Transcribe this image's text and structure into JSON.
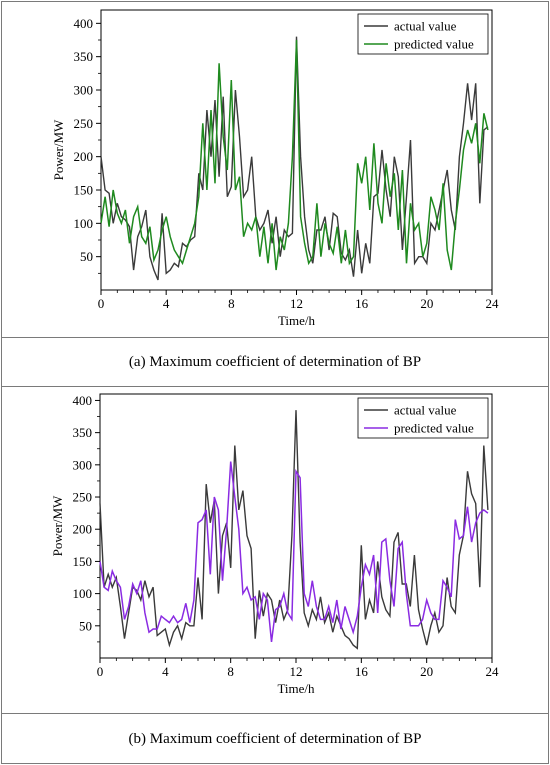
{
  "captions": [
    "(a)  Maximum coefficient of determination of BP",
    "(b)  Maximum coefficient of determination of BP"
  ],
  "chart_data": [
    {
      "type": "line",
      "xlabel": "Time/h",
      "ylabel": "Power/MW",
      "xlim": [
        0,
        24
      ],
      "ylim": [
        0,
        420
      ],
      "xticks": [
        0,
        4,
        8,
        12,
        16,
        20,
        24
      ],
      "yticks": [
        50,
        100,
        150,
        200,
        250,
        300,
        350,
        400
      ],
      "grid": false,
      "legend": "top-right",
      "series": [
        {
          "name": "actual value",
          "color": "#3a3a3a",
          "x": [
            0,
            0.25,
            0.5,
            0.75,
            1,
            1.25,
            1.5,
            1.75,
            2,
            2.25,
            2.5,
            2.75,
            3,
            3.25,
            3.5,
            3.75,
            4,
            4.25,
            4.5,
            4.75,
            5,
            5.25,
            5.5,
            5.75,
            6,
            6.25,
            6.5,
            6.75,
            7,
            7.25,
            7.5,
            7.75,
            8,
            8.25,
            8.5,
            8.75,
            9,
            9.25,
            9.5,
            9.75,
            10,
            10.25,
            10.5,
            10.75,
            11,
            11.25,
            11.5,
            11.75,
            12,
            12.25,
            12.5,
            12.75,
            13,
            13.25,
            13.5,
            13.75,
            14,
            14.25,
            14.5,
            14.75,
            15,
            15.25,
            15.5,
            15.75,
            16,
            16.25,
            16.5,
            16.75,
            17,
            17.25,
            17.5,
            17.75,
            18,
            18.25,
            18.5,
            18.75,
            19,
            19.25,
            19.5,
            19.75,
            20,
            20.25,
            20.5,
            20.75,
            21,
            21.25,
            21.5,
            21.75,
            22,
            22.25,
            22.5,
            22.75,
            23,
            23.25,
            23.5,
            23.75
          ],
          "y": [
            200,
            150,
            145,
            100,
            130,
            110,
            105,
            95,
            30,
            80,
            95,
            120,
            50,
            30,
            15,
            115,
            25,
            30,
            40,
            35,
            70,
            65,
            75,
            80,
            175,
            150,
            270,
            200,
            285,
            170,
            290,
            140,
            155,
            300,
            230,
            140,
            150,
            200,
            110,
            90,
            100,
            120,
            70,
            110,
            50,
            90,
            80,
            85,
            380,
            200,
            110,
            60,
            40,
            90,
            90,
            110,
            60,
            115,
            110,
            55,
            45,
            60,
            20,
            90,
            25,
            70,
            40,
            140,
            145,
            210,
            150,
            110,
            200,
            170,
            60,
            140,
            225,
            40,
            50,
            50,
            40,
            100,
            90,
            120,
            150,
            180,
            120,
            90,
            200,
            250,
            310,
            255,
            310,
            130,
            240,
            245
          ],
          "y_values_offset": 0
        },
        {
          "name": "predicted value",
          "color": "#1f8a1f",
          "x": [
            0,
            0.25,
            0.5,
            0.75,
            1,
            1.25,
            1.5,
            1.75,
            2,
            2.25,
            2.5,
            2.75,
            3,
            3.25,
            3.5,
            3.75,
            4,
            4.25,
            4.5,
            4.75,
            5,
            5.25,
            5.5,
            5.75,
            6,
            6.25,
            6.5,
            6.75,
            7,
            7.25,
            7.5,
            7.75,
            8,
            8.25,
            8.5,
            8.75,
            9,
            9.25,
            9.5,
            9.75,
            10,
            10.25,
            10.5,
            10.75,
            11,
            11.25,
            11.5,
            11.75,
            12,
            12.25,
            12.5,
            12.75,
            13,
            13.25,
            13.5,
            13.75,
            14,
            14.25,
            14.5,
            14.75,
            15,
            15.25,
            15.5,
            15.75,
            16,
            16.25,
            16.5,
            16.75,
            17,
            17.25,
            17.5,
            17.75,
            18,
            18.25,
            18.5,
            18.75,
            19,
            19.25,
            19.5,
            19.75,
            20,
            20.25,
            20.5,
            20.75,
            21,
            21.25,
            21.5,
            21.75,
            22,
            22.25,
            22.5,
            22.75,
            23,
            23.25,
            23.5,
            23.75
          ],
          "y": [
            100,
            140,
            95,
            150,
            115,
            100,
            120,
            70,
            110,
            125,
            80,
            70,
            95,
            45,
            60,
            90,
            110,
            80,
            60,
            50,
            40,
            60,
            80,
            100,
            140,
            250,
            150,
            270,
            160,
            340,
            230,
            180,
            315,
            150,
            170,
            80,
            100,
            90,
            110,
            50,
            95,
            40,
            100,
            30,
            80,
            60,
            100,
            200,
            375,
            110,
            70,
            40,
            50,
            130,
            50,
            100,
            70,
            55,
            95,
            40,
            90,
            40,
            50,
            190,
            160,
            200,
            120,
            220,
            130,
            100,
            190,
            140,
            175,
            90,
            180,
            40,
            130,
            90,
            100,
            50,
            70,
            140,
            120,
            90,
            160,
            60,
            30,
            100,
            150,
            210,
            240,
            220,
            250,
            190,
            265,
            240
          ]
        }
      ]
    },
    {
      "type": "line",
      "xlabel": "Time/h",
      "ylabel": "Power/MW",
      "xlim": [
        0,
        24
      ],
      "ylim": [
        0,
        410
      ],
      "xticks": [
        0,
        4,
        8,
        12,
        16,
        20,
        24
      ],
      "yticks": [
        50,
        100,
        150,
        200,
        250,
        300,
        350,
        400
      ],
      "grid": false,
      "legend": "top-right",
      "series": [
        {
          "name": "actual value",
          "color": "#3a3a3a",
          "x": [
            0,
            0.25,
            0.5,
            0.75,
            1,
            1.25,
            1.5,
            1.75,
            2,
            2.25,
            2.5,
            2.75,
            3,
            3.25,
            3.5,
            3.75,
            4,
            4.25,
            4.5,
            4.75,
            5,
            5.25,
            5.5,
            5.75,
            6,
            6.25,
            6.5,
            6.75,
            7,
            7.25,
            7.5,
            7.75,
            8,
            8.25,
            8.5,
            8.75,
            9,
            9.25,
            9.5,
            9.75,
            10,
            10.25,
            10.5,
            10.75,
            11,
            11.25,
            11.5,
            11.75,
            12,
            12.25,
            12.5,
            12.75,
            13,
            13.25,
            13.5,
            13.75,
            14,
            14.25,
            14.5,
            14.75,
            15,
            15.25,
            15.5,
            15.75,
            16,
            16.25,
            16.5,
            16.75,
            17,
            17.25,
            17.5,
            17.75,
            18,
            18.25,
            18.5,
            18.75,
            19,
            19.25,
            19.5,
            19.75,
            20,
            20.25,
            20.5,
            20.75,
            21,
            21.25,
            21.5,
            21.75,
            22,
            22.25,
            22.5,
            22.75,
            23,
            23.25,
            23.5,
            23.75
          ],
          "y": [
            240,
            110,
            130,
            110,
            125,
            80,
            30,
            70,
            110,
            105,
            90,
            120,
            95,
            110,
            35,
            40,
            45,
            20,
            40,
            50,
            30,
            55,
            50,
            50,
            125,
            60,
            270,
            210,
            245,
            100,
            190,
            210,
            140,
            330,
            230,
            260,
            190,
            170,
            30,
            105,
            65,
            100,
            90,
            55,
            90,
            60,
            75,
            190,
            385,
            180,
            70,
            50,
            75,
            60,
            95,
            55,
            70,
            40,
            65,
            50,
            35,
            30,
            20,
            15,
            175,
            60,
            90,
            70,
            150,
            95,
            75,
            65,
            180,
            195,
            115,
            115,
            80,
            160,
            75,
            45,
            20,
            50,
            70,
            40,
            50,
            125,
            80,
            70,
            160,
            190,
            290,
            255,
            240,
            110,
            330,
            230
          ]
        },
        {
          "name": "predicted value",
          "color": "#8a2be2",
          "x": [
            0,
            0.25,
            0.5,
            0.75,
            1,
            1.25,
            1.5,
            1.75,
            2,
            2.25,
            2.5,
            2.75,
            3,
            3.25,
            3.5,
            3.75,
            4,
            4.25,
            4.5,
            4.75,
            5,
            5.25,
            5.5,
            5.75,
            6,
            6.25,
            6.5,
            6.75,
            7,
            7.25,
            7.5,
            7.75,
            8,
            8.25,
            8.5,
            8.75,
            9,
            9.25,
            9.5,
            9.75,
            10,
            10.25,
            10.5,
            10.75,
            11,
            11.25,
            11.5,
            11.75,
            12,
            12.25,
            12.5,
            12.75,
            13,
            13.25,
            13.5,
            13.75,
            14,
            14.25,
            14.5,
            14.75,
            15,
            15.25,
            15.5,
            15.75,
            16,
            16.25,
            16.5,
            16.75,
            17,
            17.25,
            17.5,
            17.75,
            18,
            18.25,
            18.5,
            18.75,
            19,
            19.25,
            19.5,
            19.75,
            20,
            20.25,
            20.5,
            20.75,
            21,
            21.25,
            21.5,
            21.75,
            22,
            22.25,
            22.5,
            22.75,
            23,
            23.25,
            23.5,
            23.75
          ],
          "y": [
            150,
            110,
            105,
            135,
            120,
            110,
            60,
            80,
            115,
            100,
            120,
            70,
            40,
            45,
            45,
            65,
            60,
            55,
            65,
            55,
            60,
            85,
            55,
            90,
            210,
            215,
            230,
            130,
            250,
            230,
            120,
            200,
            305,
            250,
            200,
            100,
            110,
            90,
            95,
            60,
            100,
            90,
            25,
            75,
            80,
            100,
            70,
            60,
            290,
            280,
            100,
            80,
            120,
            80,
            60,
            60,
            80,
            55,
            90,
            45,
            80,
            60,
            40,
            65,
            110,
            145,
            130,
            160,
            70,
            180,
            185,
            120,
            80,
            170,
            180,
            100,
            50,
            50,
            50,
            60,
            90,
            70,
            60,
            60,
            120,
            110,
            95,
            215,
            185,
            190,
            235,
            180,
            210,
            225,
            230,
            225
          ]
        }
      ]
    }
  ]
}
